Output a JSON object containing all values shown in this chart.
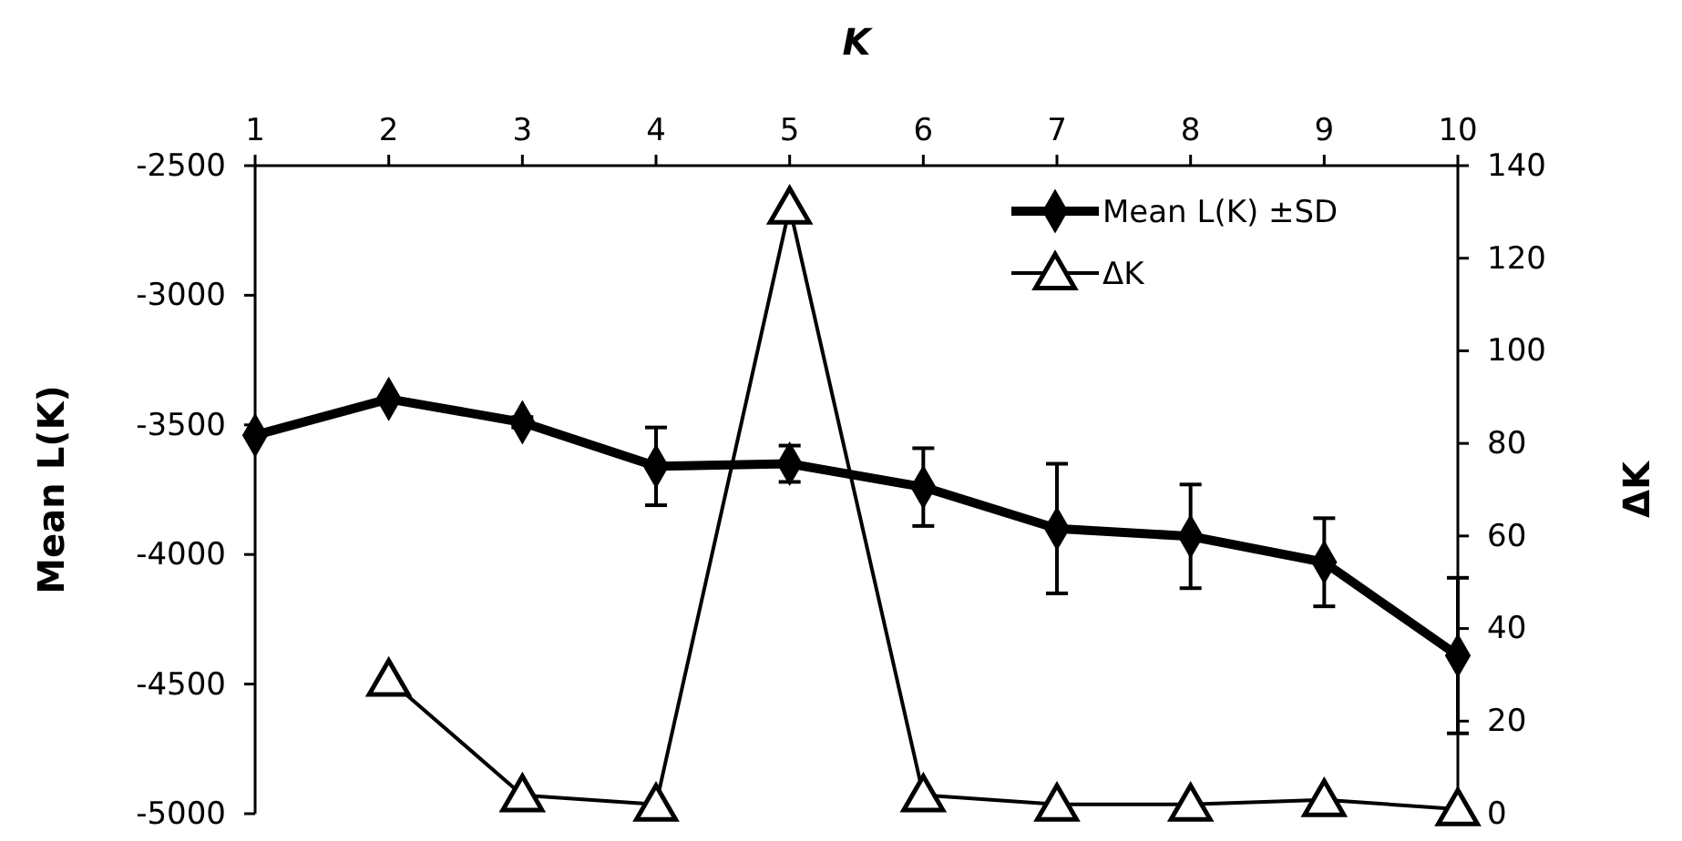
{
  "chart_data": {
    "type": "line",
    "xlabel": "K",
    "ylabel": "Mean L(K)",
    "y2label": "ΔK",
    "x": [
      1,
      2,
      3,
      4,
      5,
      6,
      7,
      8,
      9,
      10
    ],
    "series": [
      {
        "name": "Mean L(K) ±SD",
        "color": "#000000",
        "marker": "diamond",
        "values": [
          -3540,
          -3400,
          -3490,
          -3660,
          -3650,
          -3740,
          -3900,
          -3930,
          -4030,
          -4390
        ],
        "errors": [
          null,
          null,
          20,
          150,
          70,
          150,
          250,
          200,
          170,
          300
        ]
      },
      {
        "name": "ΔK",
        "color": "#000000",
        "marker": "triangle",
        "axis": "y2",
        "x": [
          2,
          3,
          4,
          5,
          6,
          7,
          8,
          9,
          10
        ],
        "values": [
          29,
          4,
          2,
          131,
          4,
          2,
          2,
          3,
          1
        ]
      }
    ],
    "xlim": [
      1,
      10
    ],
    "xticks": [
      1,
      2,
      3,
      4,
      5,
      6,
      7,
      8,
      9,
      10
    ],
    "ylim": [
      -5000,
      -2500
    ],
    "yticks": [
      -5000,
      -4500,
      -4000,
      -3500,
      -3000,
      -2500
    ],
    "y2lim": [
      0,
      140
    ],
    "y2ticks": [
      0,
      20,
      40,
      60,
      80,
      100,
      120,
      140
    ],
    "legend": "top right",
    "grid": false
  }
}
